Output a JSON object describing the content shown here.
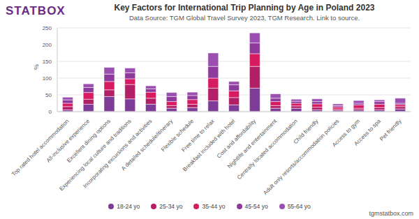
{
  "chart_data": {
    "type": "bar",
    "title": "Key Factors for International Trip Planning by Age in Poland 2023",
    "subtitle": "Data Source: TGM Global Travel Survey 2023, TGM Research. Link to source.",
    "logo": "STATBOX",
    "footer": "tgmstatbox.com",
    "y_label": "%",
    "stacked": true,
    "grid": true,
    "legend": "bottom",
    "categories": [
      "Top rated hotel accommodation",
      "All-inclusive experience",
      "Excellent dining options",
      "Experiencing local culture and traditions",
      "Incorporating excursions and activities",
      "A detailed schedule/itinerary",
      "Flexible schedule",
      "Free time to relax",
      "Breakfast included with hotel",
      "Cost and affordability",
      "Nightlife and entertainment",
      "Centrally located accommodation",
      "Child friendly",
      "Adult only resorts/accommodation policies",
      "Access to gym",
      "Access to spa",
      "Pet friendly"
    ],
    "series": [
      {
        "name": "18-24 yo",
        "color": "#7d3c98",
        "values": [
          5,
          22,
          45,
          38,
          22,
          10,
          12,
          32,
          20,
          70,
          10,
          10,
          5,
          4,
          5,
          5,
          8
        ]
      },
      {
        "name": "25-34 yo",
        "color": "#b21f66",
        "values": [
          10,
          15,
          20,
          43,
          18,
          8,
          10,
          38,
          22,
          65,
          8,
          7,
          8,
          4,
          5,
          7,
          7
        ]
      },
      {
        "name": "35-44 yo",
        "color": "#d81b60",
        "values": [
          10,
          20,
          25,
          17,
          18,
          12,
          14,
          30,
          20,
          38,
          12,
          8,
          10,
          6,
          10,
          10,
          6
        ]
      },
      {
        "name": "45-54 yo",
        "color": "#8e3a9d",
        "values": [
          10,
          15,
          22,
          18,
          10,
          15,
          12,
          35,
          18,
          32,
          10,
          6,
          7,
          4,
          5,
          8,
          4
        ]
      },
      {
        "name": "55-64 yo",
        "color": "#9b4fb0",
        "values": [
          8,
          11,
          20,
          14,
          9,
          12,
          10,
          40,
          10,
          30,
          13,
          6,
          8,
          5,
          8,
          5,
          15
        ]
      }
    ],
    "ylim": [
      0,
      250
    ],
    "yticks": [
      0,
      50,
      100,
      150,
      200,
      250
    ]
  }
}
